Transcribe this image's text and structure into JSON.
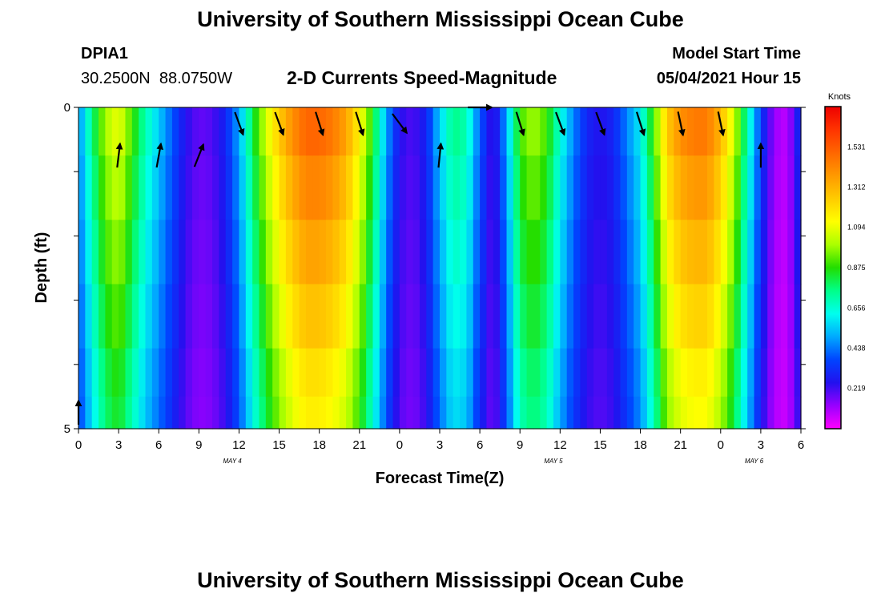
{
  "page": {
    "title_top": "University of Southern Mississippi Ocean Cube",
    "title_bottom": "University of Southern Mississippi Ocean Cube",
    "station_id": "DPIA1",
    "station_coords": "30.2500N  88.0750W",
    "subtitle": "2-D Currents Speed-Magnitude",
    "model_start_label": "Model Start Time",
    "model_start_value": "05/04/2021 Hour 15"
  },
  "colors": {
    "speed_colormap": [
      "#ff00ff",
      "#9900ff",
      "#2211ee",
      "#0044ff",
      "#00aaff",
      "#00ffee",
      "#00ff88",
      "#22dd00",
      "#aaff00",
      "#ffff00",
      "#ffcc00",
      "#ff9900",
      "#ff6600",
      "#ff3300",
      "#ee0000"
    ],
    "vector_color": "#000000"
  },
  "chart_data": {
    "type": "heatmap",
    "xlabel": "Forecast Time(Z)",
    "ylabel": "Depth (ft)",
    "colorbar_label": "Knots",
    "x_tick_labels": [
      "0",
      "3",
      "6",
      "9",
      "12",
      "15",
      "18",
      "21",
      "0",
      "3",
      "6",
      "9",
      "12",
      "15",
      "18",
      "21",
      "0",
      "3",
      "6"
    ],
    "x_range_hours": [
      0,
      54
    ],
    "y_tick_labels": [
      "0",
      "5"
    ],
    "y_range_ft": [
      0,
      5
    ],
    "date_labels": [
      {
        "label": "MAY 4",
        "hour": 11.5
      },
      {
        "label": "MAY 5",
        "hour": 35.5
      },
      {
        "label": "MAY 6",
        "hour": 50.5
      }
    ],
    "colorbar_ticks": [
      0.219,
      0.438,
      0.656,
      0.875,
      1.094,
      1.312,
      1.531
    ],
    "colorbar_range": [
      0,
      1.75
    ],
    "depth_layers_ft": [
      0.25,
      1.25,
      2.25,
      3.25,
      4.25,
      4.75
    ],
    "speed_profile_hours": [
      0,
      1,
      2,
      3,
      4,
      5,
      6,
      7,
      8,
      9,
      10,
      11,
      12,
      13,
      14,
      15,
      16,
      17,
      18,
      19,
      20,
      21,
      22,
      23,
      24,
      25,
      26,
      27,
      28,
      29,
      30,
      31,
      32,
      33,
      34,
      35,
      36,
      37,
      38,
      39,
      40,
      41,
      42,
      43,
      44,
      45,
      46,
      47,
      48,
      49,
      50,
      51,
      52,
      53,
      54
    ],
    "speed_profile_knots": [
      0.45,
      0.75,
      1.0,
      1.1,
      0.9,
      0.7,
      0.55,
      0.4,
      0.25,
      0.18,
      0.2,
      0.3,
      0.5,
      0.8,
      1.05,
      1.25,
      1.4,
      1.5,
      1.5,
      1.45,
      1.35,
      1.15,
      0.85,
      0.5,
      0.25,
      0.2,
      0.3,
      0.55,
      0.75,
      0.7,
      0.4,
      0.2,
      0.5,
      0.9,
      1.0,
      0.9,
      0.65,
      0.45,
      0.3,
      0.25,
      0.3,
      0.45,
      0.6,
      0.9,
      1.25,
      1.4,
      1.45,
      1.45,
      1.3,
      1.05,
      0.7,
      0.35,
      0.12,
      0.08,
      0.35
    ],
    "vectors": [
      {
        "hour": 0,
        "depth_ft": 4.75,
        "dx": 0.0,
        "dy": -1.0
      },
      {
        "hour": 3,
        "depth_ft": 0.75,
        "dx": 0.12,
        "dy": -1.0
      },
      {
        "hour": 6,
        "depth_ft": 0.75,
        "dx": 0.18,
        "dy": -1.0
      },
      {
        "hour": 9,
        "depth_ft": 0.75,
        "dx": 0.4,
        "dy": -1.0
      },
      {
        "hour": 12,
        "depth_ft": 0.25,
        "dx": 0.35,
        "dy": 0.95
      },
      {
        "hour": 15,
        "depth_ft": 0.25,
        "dx": 0.35,
        "dy": 0.95
      },
      {
        "hour": 18,
        "depth_ft": 0.25,
        "dx": 0.3,
        "dy": 0.95
      },
      {
        "hour": 21,
        "depth_ft": 0.25,
        "dx": 0.3,
        "dy": 0.95
      },
      {
        "hour": 24,
        "depth_ft": 0.25,
        "dx": 0.6,
        "dy": 0.8
      },
      {
        "hour": 27,
        "depth_ft": 0.75,
        "dx": 0.1,
        "dy": -1.0
      },
      {
        "hour": 30,
        "depth_ft": 0.0,
        "dx": 1.0,
        "dy": 0.0
      },
      {
        "hour": 33,
        "depth_ft": 0.25,
        "dx": 0.3,
        "dy": 0.95
      },
      {
        "hour": 36,
        "depth_ft": 0.25,
        "dx": 0.35,
        "dy": 0.95
      },
      {
        "hour": 39,
        "depth_ft": 0.25,
        "dx": 0.35,
        "dy": 0.95
      },
      {
        "hour": 42,
        "depth_ft": 0.25,
        "dx": 0.3,
        "dy": 0.95
      },
      {
        "hour": 45,
        "depth_ft": 0.25,
        "dx": 0.2,
        "dy": 0.95
      },
      {
        "hour": 48,
        "depth_ft": 0.25,
        "dx": 0.2,
        "dy": 0.95
      },
      {
        "hour": 51,
        "depth_ft": 0.75,
        "dx": 0.0,
        "dy": -1.0
      }
    ]
  }
}
